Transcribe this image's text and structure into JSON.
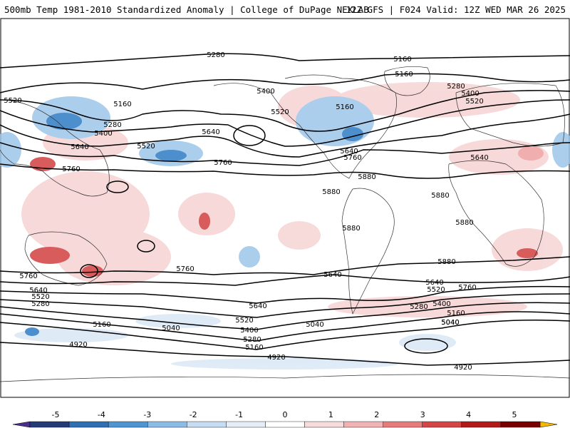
{
  "header": {
    "title_left": "500mb Temp 1981-2010 Standardized Anomaly | College of DuPage NEXLAB",
    "title_right": "12Z GFS | F024 Valid: 12Z WED MAR 26 2025"
  },
  "colorbar": {
    "ticks": [
      "-5",
      "-4",
      "-3",
      "-2",
      "-1",
      "0",
      "1",
      "2",
      "3",
      "4",
      "5"
    ],
    "colors": [
      "#4c2f8a",
      "#243b78",
      "#2f6fb3",
      "#4d96d2",
      "#8bbce6",
      "#c6dcf2",
      "#e5eef8",
      "#ffffff",
      "#f7dada",
      "#f0b2b2",
      "#e67b7b",
      "#d64545",
      "#b51a1a",
      "#7a0000",
      "#f5b800"
    ]
  },
  "contour_labels": [
    "5280",
    "5160",
    "5160",
    "5280",
    "5400",
    "5520",
    "5520",
    "5160",
    "5280",
    "5400",
    "5520",
    "5400",
    "5520",
    "5160",
    "5640",
    "5760",
    "5640",
    "5640",
    "5760",
    "5880",
    "5880",
    "5880",
    "5880",
    "5880",
    "5880",
    "5760",
    "5760",
    "5760",
    "5640",
    "5640",
    "5520",
    "5280",
    "5160",
    "5640",
    "5520",
    "5400",
    "5280",
    "5160",
    "5040",
    "5040",
    "5040",
    "4920",
    "4920",
    "4920",
    "5640",
    "5520",
    "5400",
    "5280",
    "5160",
    "5040",
    "5760",
    "5640"
  ],
  "color_legend": {
    "anomaly_colors": {
      "strong_cold": "#2f7bc4",
      "cold": "#9ec6ea",
      "mild_cold": "#d9e7f5",
      "mild_warm": "#f6d3d3",
      "warm": "#eea0a0",
      "strong_warm": "#d24040"
    }
  }
}
